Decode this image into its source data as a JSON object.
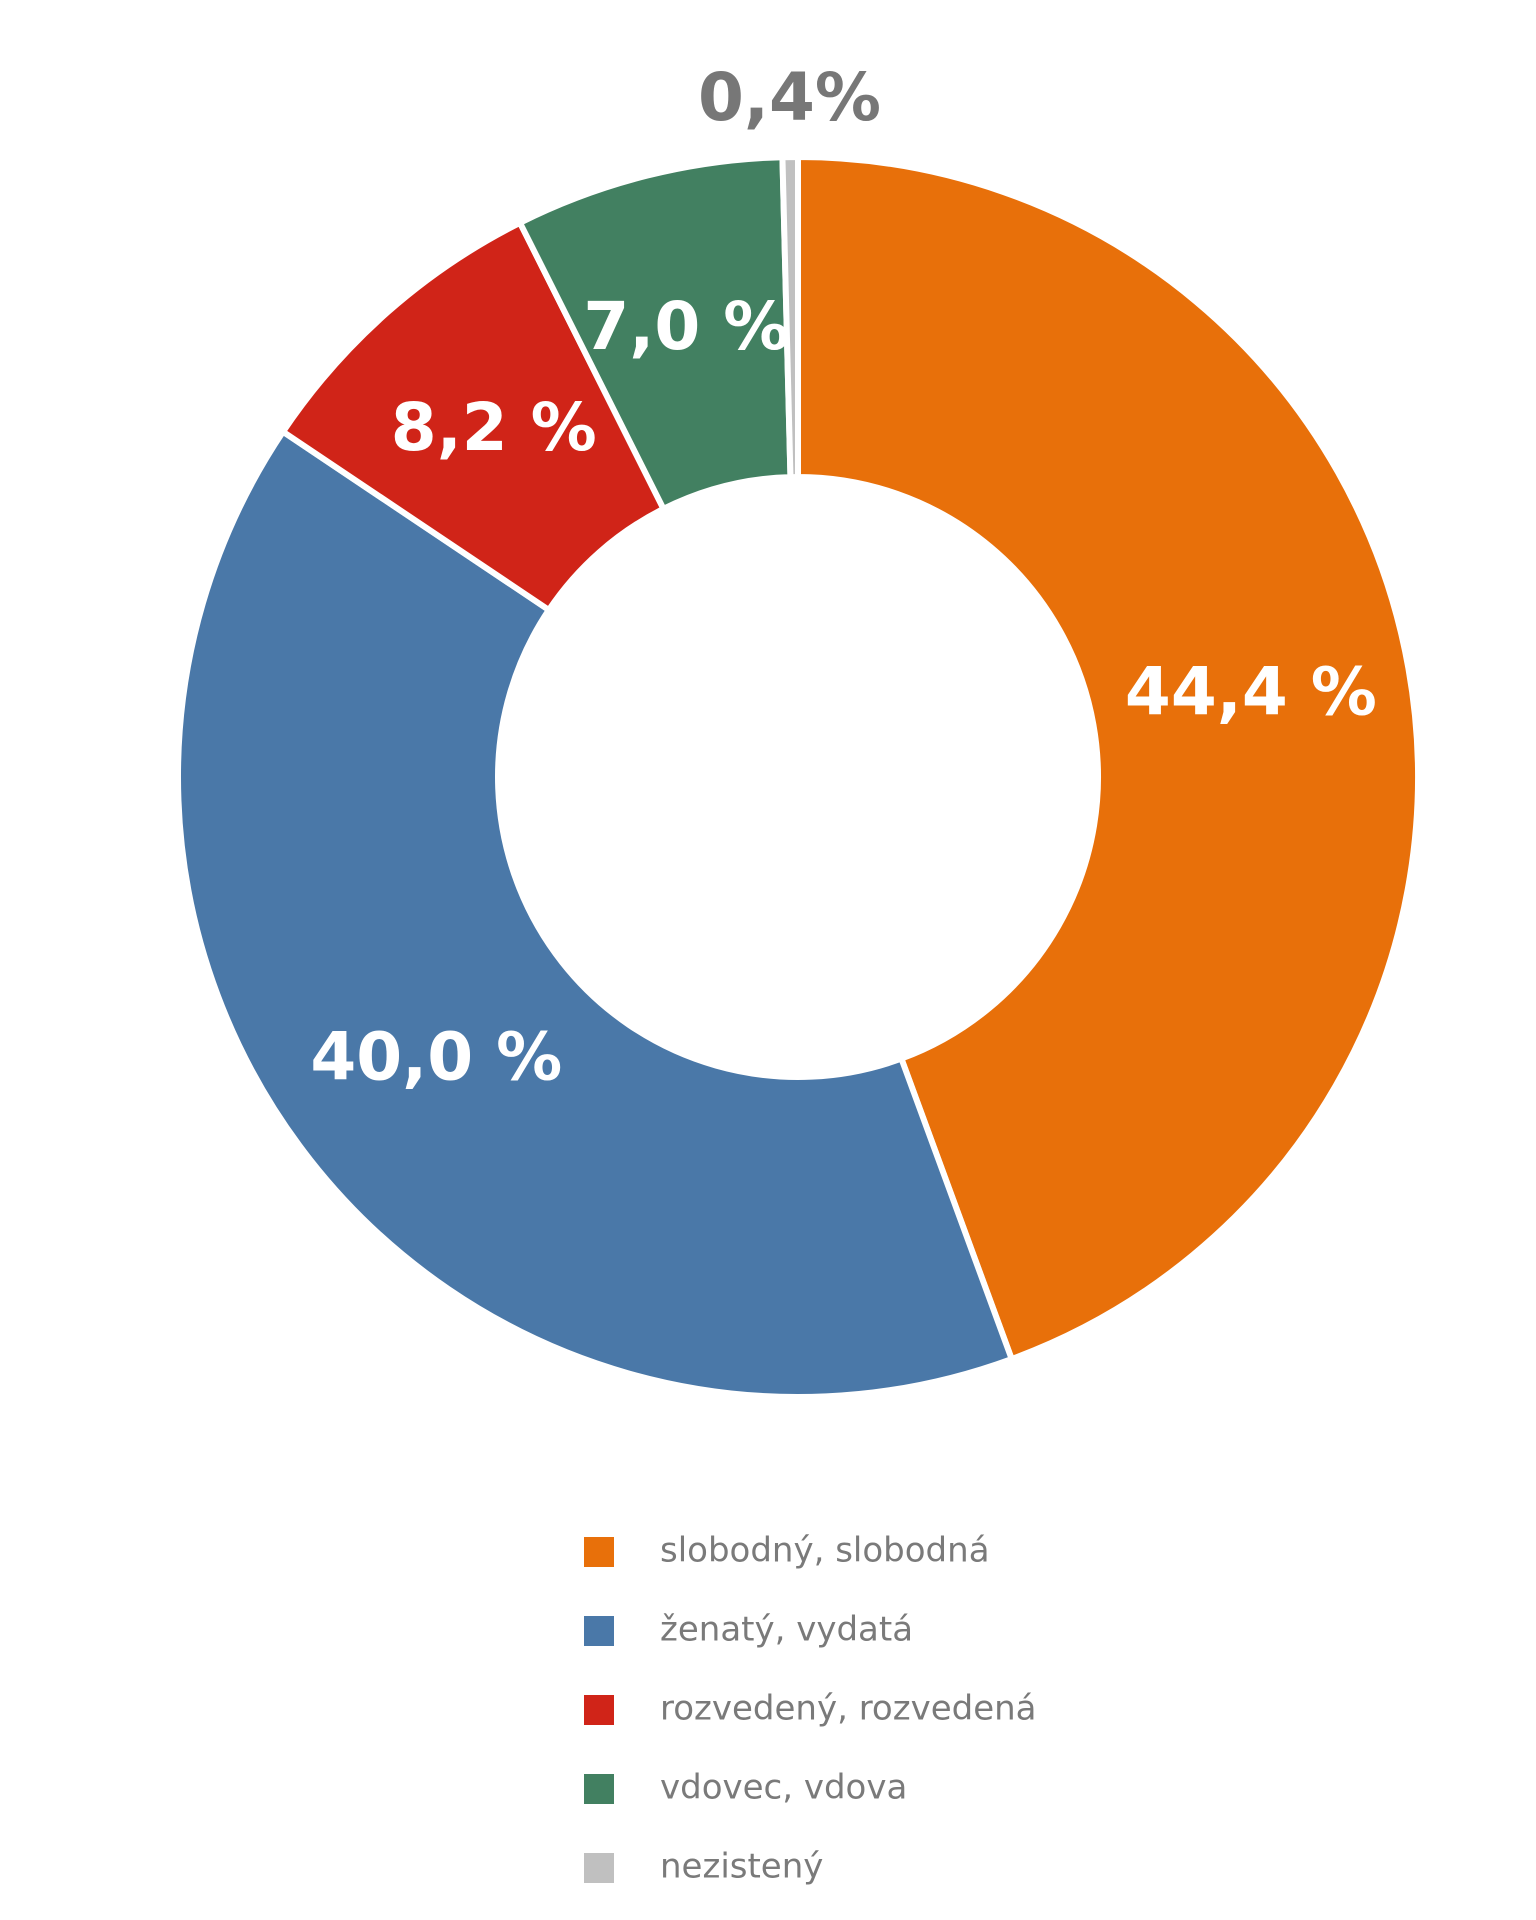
{
  "chart_data": {
    "type": "pie",
    "categories": [
      "slobodný, slobodná",
      "ženatý, vydatá",
      "rozvedený, rozvedená",
      "vdovec, vdova",
      "nezistený"
    ],
    "values": [
      44.4,
      40.0,
      8.2,
      7.0,
      0.4
    ],
    "value_labels": [
      "44,4 %",
      "40,0 %",
      "8,2 %",
      "7,0 %",
      "0,4%"
    ],
    "colors": [
      "#e8700a",
      "#4a78a8",
      "#d02418",
      "#428061",
      "#c0c0c0"
    ]
  }
}
